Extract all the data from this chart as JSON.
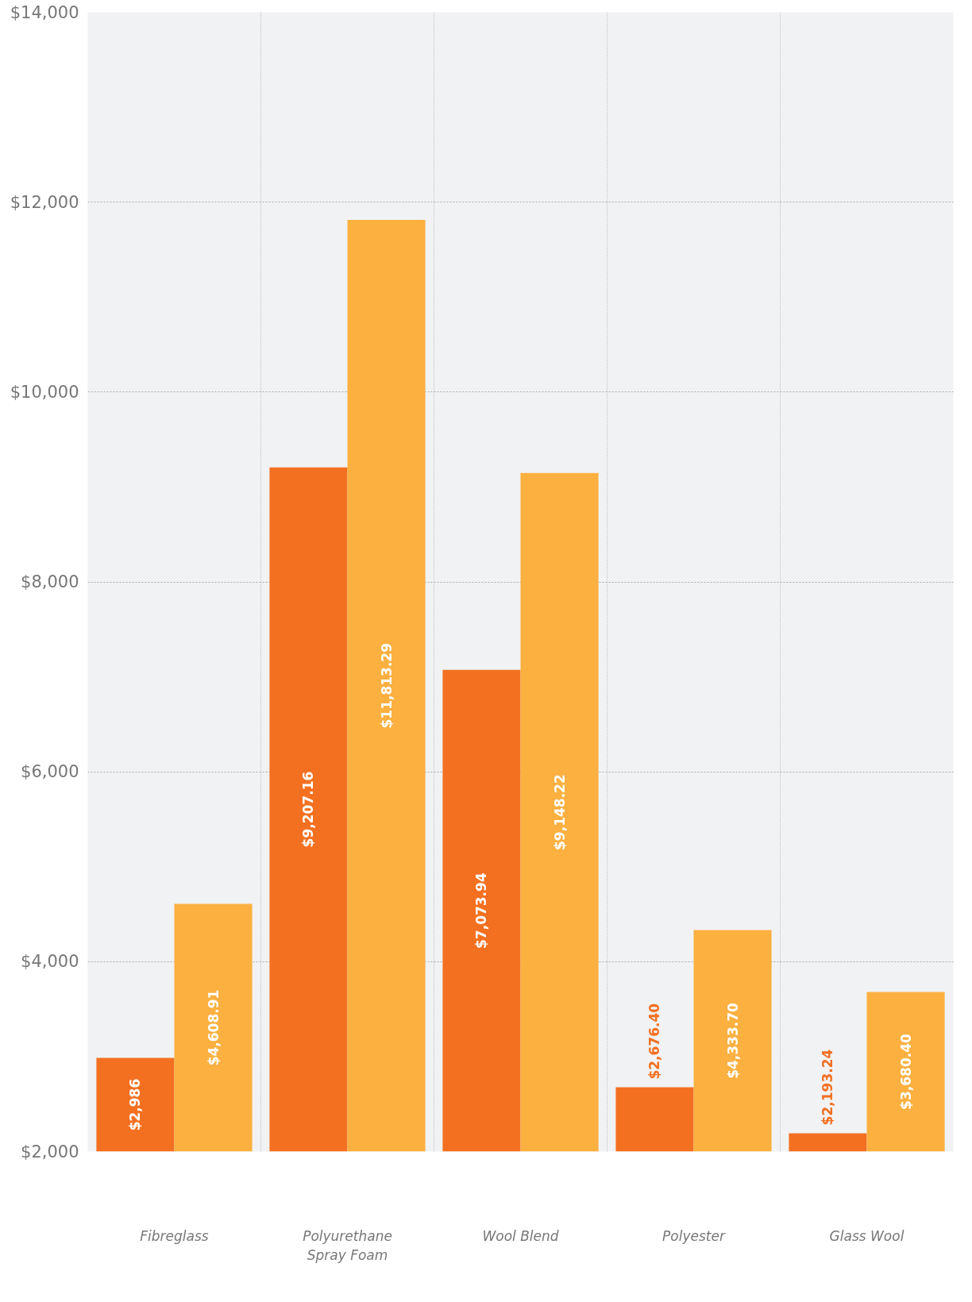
{
  "chart_data": {
    "type": "bar",
    "categories": [
      "Fibreglass",
      "Polyurethane Spray Foam",
      "Wool Blend",
      "Polyester",
      "Glass Wool"
    ],
    "series": [
      {
        "color": "#f37021",
        "values": [
          2986,
          9207.16,
          7073.94,
          2676.4,
          2193.24
        ]
      },
      {
        "color": "#fbb040",
        "values": [
          4608.91,
          11813.29,
          9148.22,
          4333.7,
          3680.4
        ]
      }
    ],
    "value_labels": [
      [
        "$2,986",
        "$9,207.16",
        "$7,073.94",
        "$2,676.40",
        "$2,193.24"
      ],
      [
        "$4,608.91",
        "$11,813.29",
        "$9,148.22",
        "$4,333.70",
        "$3,680.40"
      ]
    ],
    "ylim": [
      2000,
      14000
    ],
    "yticks": [
      {
        "value": 2000,
        "label": "$2,000"
      },
      {
        "value": 4000,
        "label": "$4,000"
      },
      {
        "value": 6000,
        "label": "$6,000"
      },
      {
        "value": 8000,
        "label": "$8,000"
      },
      {
        "value": 10000,
        "label": "$10,000"
      },
      {
        "value": 12000,
        "label": "$12,000"
      },
      {
        "value": 14000,
        "label": "$14,000"
      }
    ],
    "grid": true
  }
}
